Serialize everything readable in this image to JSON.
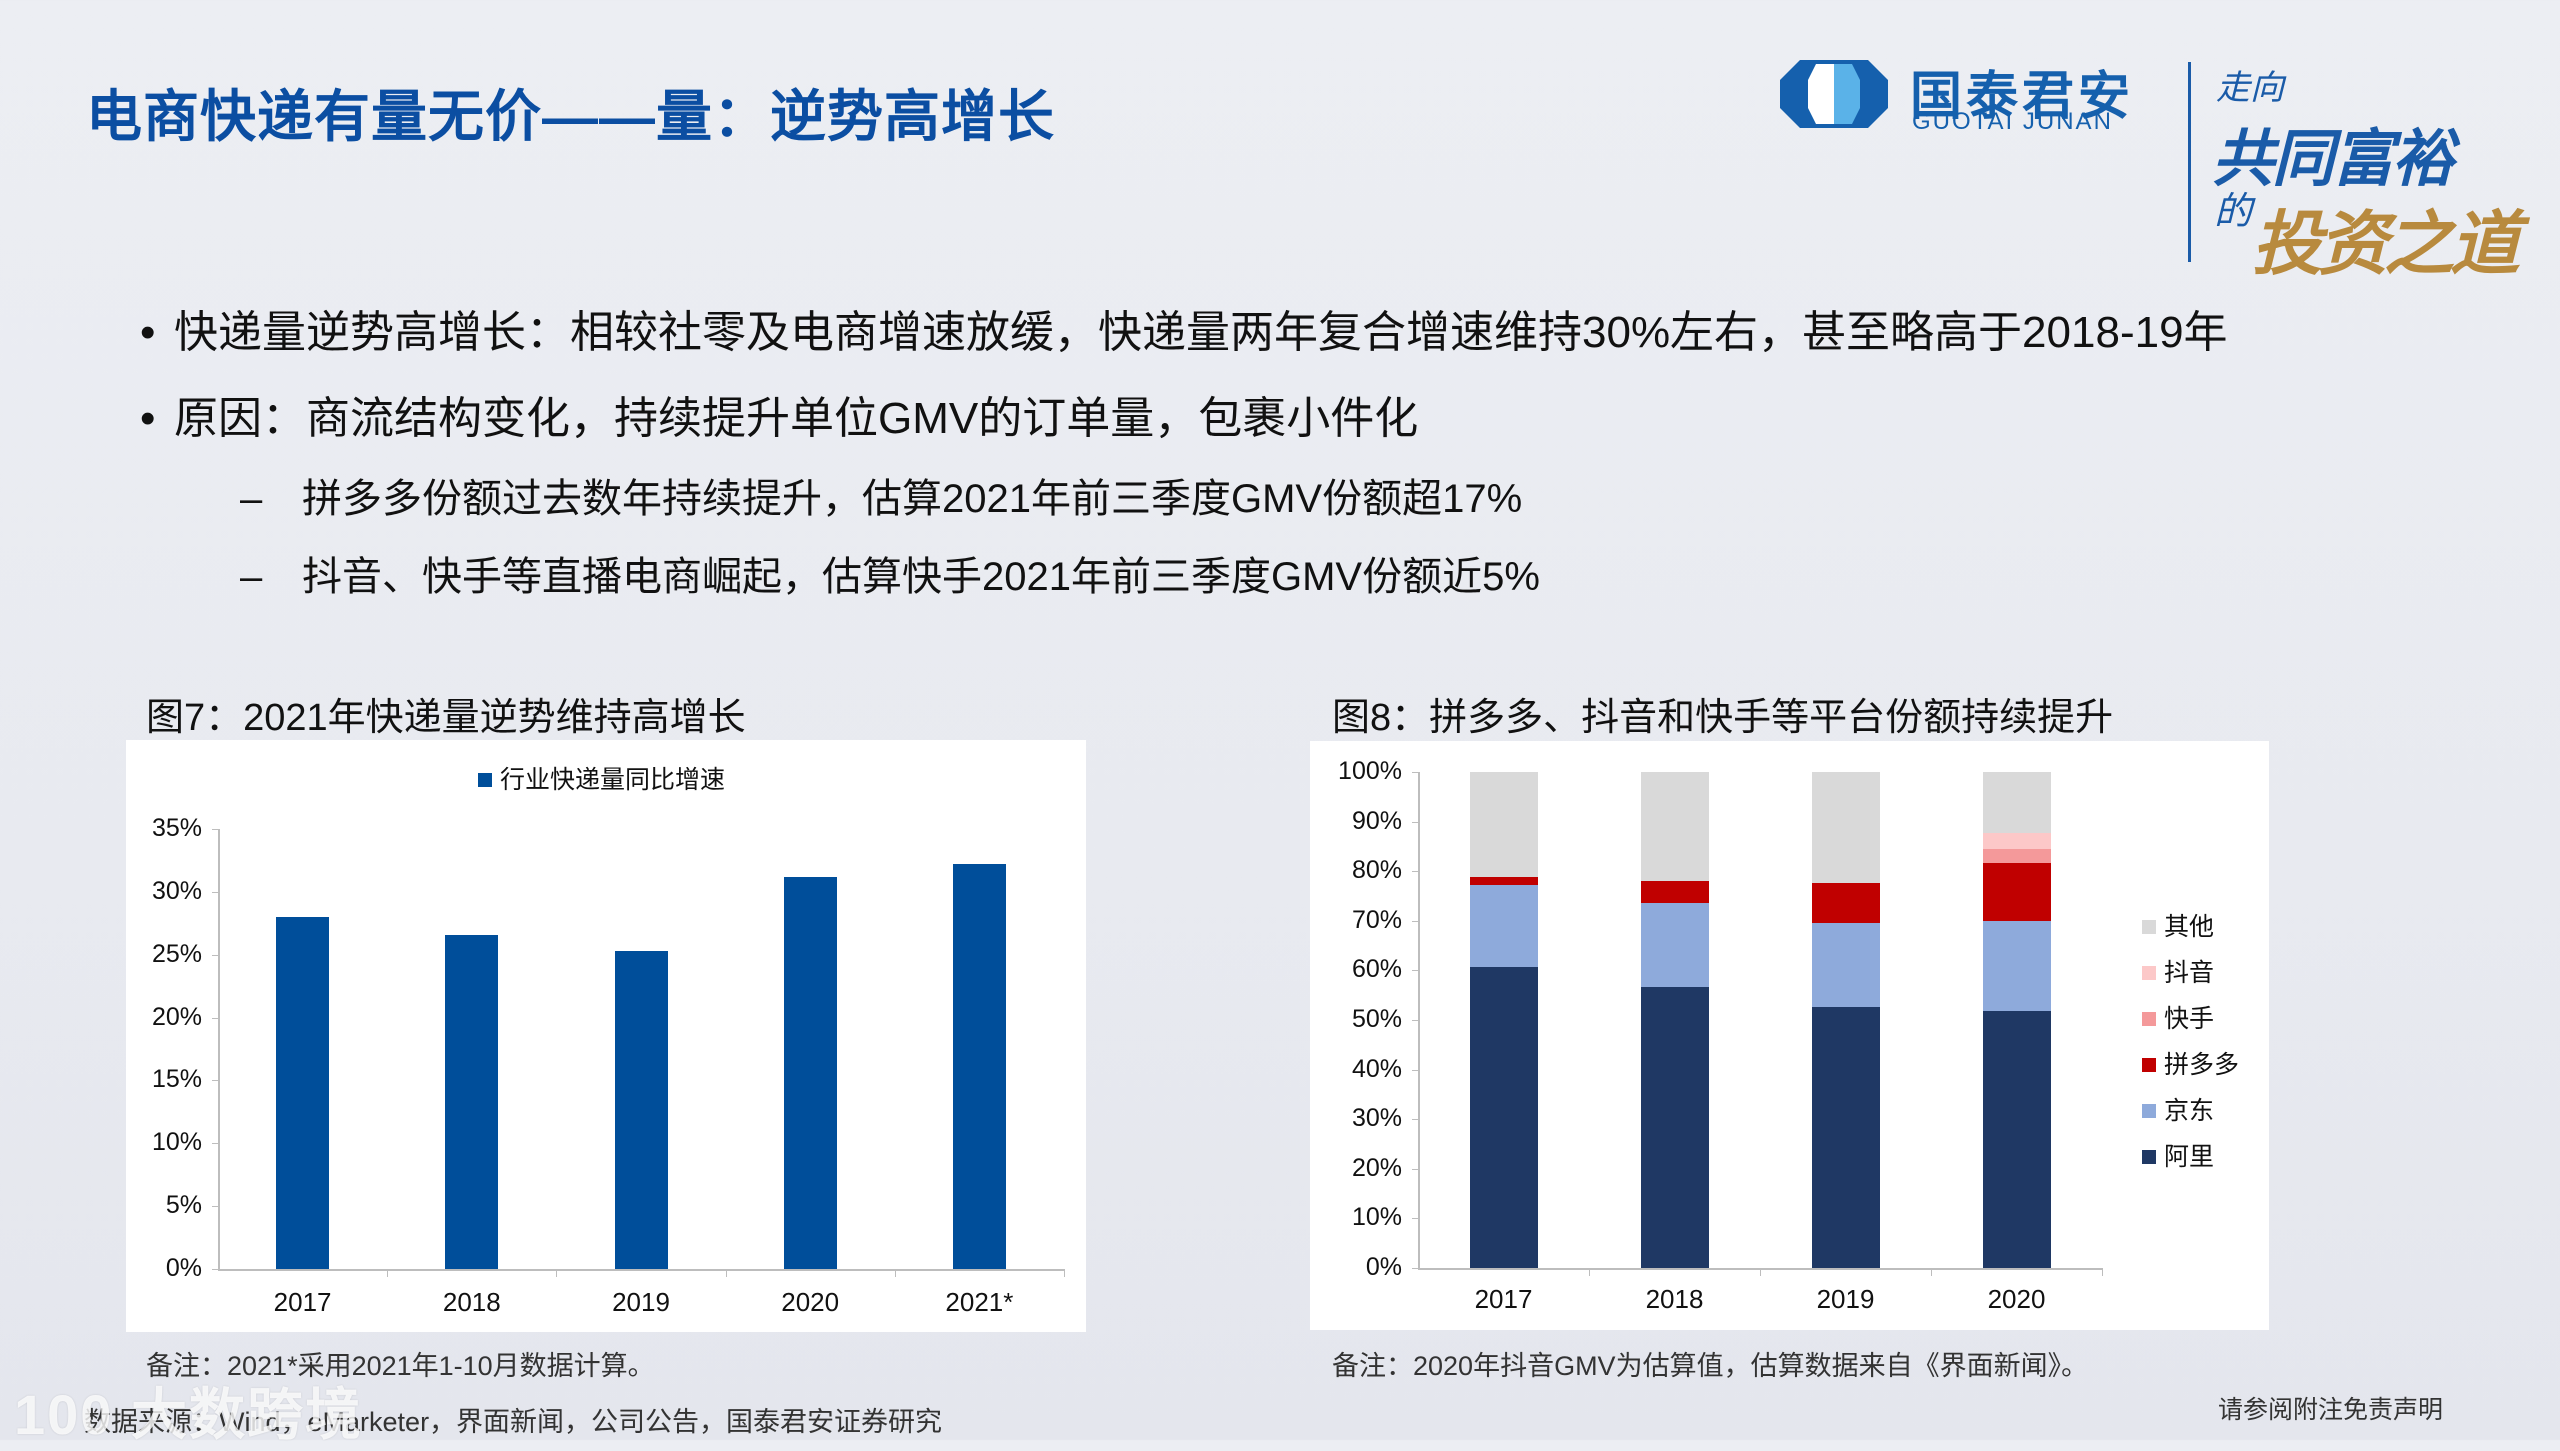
{
  "header": {
    "title": "电商快递有量无价——量：逆势高增长",
    "logo": {
      "cn": "国泰君安",
      "en": "GUOTAI JUNAN",
      "icon": "guotai-junan-logo-icon"
    },
    "slogan": {
      "line1": "走向",
      "line2": "共同富裕",
      "line3": "的",
      "line4": "投资之道"
    }
  },
  "bullets": [
    {
      "text": "快递量逆势高增长：相较社零及电商增速放缓，快递量两年复合增速维持30%左右，甚至略高于2018-19年"
    },
    {
      "text": "原因：商流结构变化，持续提升单位GMV的订单量，包裹小件化"
    }
  ],
  "sub_bullets": [
    {
      "text": "拼多多份额过去数年持续提升，估算2021年前三季度GMV份额超17%"
    },
    {
      "text": "抖音、快手等直播电商崛起，估算快手2021年前三季度GMV份额近5%"
    }
  ],
  "bullet_symbol": "•",
  "dash_symbol": "–",
  "figures": {
    "fig7": {
      "title": "图7：2021年快递量逆势维持高增长",
      "note": "备注：2021*采用2021年1-10月数据计算。",
      "legend": "行业快递量同比增速",
      "yticks": [
        "35%",
        "30%",
        "25%",
        "20%",
        "15%",
        "10%",
        "5%",
        "0%"
      ]
    },
    "fig8": {
      "title": "图8：拼多多、抖音和快手等平台份额持续提升",
      "note": "备注：2020年抖音GMV为估算值，估算数据来自《界面新闻》。",
      "yticks": [
        "100%",
        "90%",
        "80%",
        "70%",
        "60%",
        "50%",
        "40%",
        "30%",
        "20%",
        "10%",
        "0%"
      ],
      "legend": [
        "其他",
        "抖音",
        "快手",
        "拼多多",
        "京东",
        "阿里"
      ]
    }
  },
  "footer": {
    "source": "数据来源：Wind，eMarketer，界面新闻，公司公告，国泰君安证券研究",
    "disclaimer": "请参阅附注免责声明",
    "watermark": "100 大数跨境"
  },
  "colors": {
    "title_blue": "#0b4ea2",
    "bar_blue": "#004e9a",
    "ali": "#1f3864",
    "jd": "#8eaadb",
    "pdd": "#c00000",
    "kuaishou": "#f4999a",
    "douyin": "#fcc8c8",
    "other": "#d9d9d9"
  },
  "chart_data": [
    {
      "type": "bar",
      "title": "图7：2021年快递量逆势维持高增长",
      "categories": [
        "2017",
        "2018",
        "2019",
        "2020",
        "2021*"
      ],
      "series": [
        {
          "name": "行业快递量同比增速",
          "values": [
            28.0,
            26.6,
            25.3,
            31.2,
            32.2
          ]
        }
      ],
      "xlabel": "",
      "ylabel": "",
      "ylim": [
        0,
        35
      ],
      "yticks": [
        "0%",
        "5%",
        "10%",
        "15%",
        "20%",
        "25%",
        "30%",
        "35%"
      ],
      "unit": "%",
      "grid": false,
      "legend_position": "top"
    },
    {
      "type": "bar",
      "stacked": true,
      "title": "图8：拼多多、抖音和快手等平台份额持续提升",
      "categories": [
        "2017",
        "2018",
        "2019",
        "2020"
      ],
      "series": [
        {
          "name": "阿里",
          "values": [
            60.7,
            56.7,
            52.7,
            51.9
          ]
        },
        {
          "name": "京东",
          "values": [
            16.5,
            16.9,
            16.9,
            18.0
          ]
        },
        {
          "name": "拼多多",
          "values": [
            1.6,
            4.4,
            8.0,
            11.8
          ]
        },
        {
          "name": "快手",
          "values": [
            0,
            0,
            0,
            2.8
          ]
        },
        {
          "name": "抖音",
          "values": [
            0,
            0,
            0,
            3.2
          ]
        },
        {
          "name": "其他",
          "values": [
            21.2,
            22.0,
            22.4,
            12.3
          ]
        }
      ],
      "xlabel": "",
      "ylabel": "",
      "ylim": [
        0,
        100
      ],
      "yticks": [
        "0%",
        "10%",
        "20%",
        "30%",
        "40%",
        "50%",
        "60%",
        "70%",
        "80%",
        "90%",
        "100%"
      ],
      "unit": "%",
      "grid": false,
      "legend_position": "right"
    }
  ]
}
